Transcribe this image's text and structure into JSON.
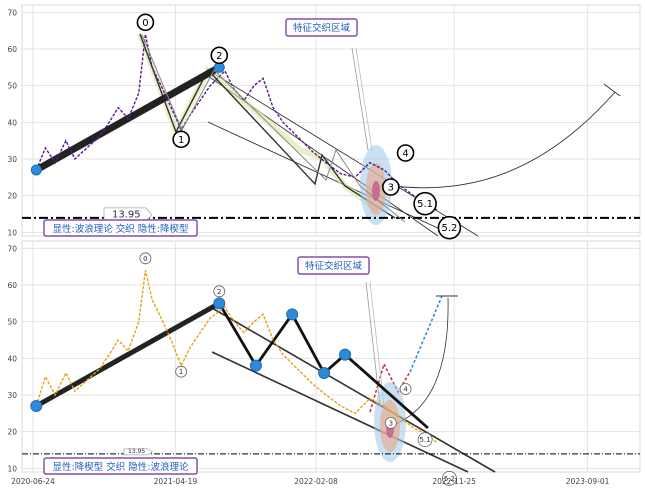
{
  "chart_data": [
    {
      "type": "line",
      "x_dates": [
        "2020-06-24",
        "2021-04-19",
        "2022-02-08",
        "2022-11-25",
        "2023-09-01"
      ],
      "y_ticks": [
        10,
        20,
        30,
        40,
        50,
        60,
        70
      ],
      "ylim": [
        9,
        72
      ],
      "xlim": [
        "2020-06-01",
        "2023-12-20"
      ],
      "grid": true,
      "price_series_color": "#5b1a8c",
      "price_series": [
        [
          "2020-07-01",
          27
        ],
        [
          "2020-07-20",
          33
        ],
        [
          "2020-08-10",
          29
        ],
        [
          "2020-09-01",
          35
        ],
        [
          "2020-09-20",
          30
        ],
        [
          "2020-10-15",
          33
        ],
        [
          "2020-11-10",
          36
        ],
        [
          "2020-12-01",
          40
        ],
        [
          "2020-12-20",
          44
        ],
        [
          "2021-01-10",
          41
        ],
        [
          "2021-02-01",
          48
        ],
        [
          "2021-02-15",
          64
        ],
        [
          "2021-03-01",
          55
        ],
        [
          "2021-03-20",
          50
        ],
        [
          "2021-04-10",
          44
        ],
        [
          "2021-05-01",
          38
        ],
        [
          "2021-05-20",
          42
        ],
        [
          "2021-06-10",
          46
        ],
        [
          "2021-07-01",
          50
        ],
        [
          "2021-08-01",
          54
        ],
        [
          "2021-08-20",
          49
        ],
        [
          "2021-09-10",
          46
        ],
        [
          "2021-10-01",
          50
        ],
        [
          "2021-10-20",
          52
        ],
        [
          "2021-11-10",
          44
        ],
        [
          "2021-12-01",
          40
        ],
        [
          "2022-01-01",
          36
        ],
        [
          "2022-02-01",
          32
        ],
        [
          "2022-03-01",
          29
        ],
        [
          "2022-04-01",
          26
        ],
        [
          "2022-05-01",
          25
        ],
        [
          "2022-06-01",
          29
        ],
        [
          "2022-07-01",
          27
        ],
        [
          "2022-08-01",
          23
        ],
        [
          "2022-09-01",
          20
        ],
        [
          "2022-10-01",
          18
        ],
        [
          "2022-10-20",
          16
        ]
      ],
      "wave_nodes": [
        {
          "label": "0",
          "date": "2021-02-15",
          "value": 64
        },
        {
          "label": "1",
          "date": "2021-05-01",
          "value": 37
        },
        {
          "label": "2",
          "date": "2021-07-20",
          "value": 55
        },
        {
          "label": "3",
          "date": "2022-07-15",
          "value": 24
        },
        {
          "label": "4",
          "date": "2022-08-15",
          "value": 30
        },
        {
          "label": "5.1",
          "date": "2022-09-25",
          "value": 20
        },
        {
          "label": "5.2",
          "date": "2022-11-15",
          "value": 14
        }
      ],
      "main_wave": [
        [
          "2020-07-01",
          27
        ],
        [
          "2021-07-20",
          55
        ]
      ],
      "markers": [
        [
          "2020-07-01",
          27
        ],
        [
          "2021-07-20",
          55
        ]
      ],
      "horizontal_level": 13.95,
      "level_label": "13.95",
      "badge_top": "特征交织区域",
      "badge_bottom": "显性:波浪理论 交织 隐性:降楔型"
    },
    {
      "type": "line",
      "x_dates": [
        "2020-06-24",
        "2021-04-19",
        "2022-02-08",
        "2022-11-25",
        "2023-09-01"
      ],
      "y_ticks": [
        10,
        20,
        30,
        40,
        50,
        60,
        70
      ],
      "ylim": [
        9,
        72
      ],
      "xlim": [
        "2020-06-01",
        "2023-12-20"
      ],
      "grid": true,
      "price_series_color": "#e8a21a",
      "price_series": [
        [
          "2020-07-01",
          27
        ],
        [
          "2020-07-20",
          35
        ],
        [
          "2020-08-10",
          30
        ],
        [
          "2020-09-01",
          36
        ],
        [
          "2020-09-20",
          31
        ],
        [
          "2020-10-15",
          34
        ],
        [
          "2020-11-10",
          37
        ],
        [
          "2020-12-01",
          41
        ],
        [
          "2020-12-20",
          45
        ],
        [
          "2021-01-10",
          42
        ],
        [
          "2021-02-01",
          50
        ],
        [
          "2021-02-15",
          64
        ],
        [
          "2021-03-01",
          56
        ],
        [
          "2021-03-20",
          51
        ],
        [
          "2021-04-10",
          45
        ],
        [
          "2021-05-01",
          38
        ],
        [
          "2021-05-20",
          43
        ],
        [
          "2021-06-10",
          47
        ],
        [
          "2021-07-01",
          51
        ],
        [
          "2021-08-01",
          54
        ],
        [
          "2021-08-20",
          50
        ],
        [
          "2021-09-10",
          47
        ],
        [
          "2021-10-01",
          50
        ],
        [
          "2021-10-20",
          52
        ],
        [
          "2021-11-10",
          45
        ],
        [
          "2021-12-01",
          41
        ],
        [
          "2022-01-01",
          37
        ],
        [
          "2022-02-01",
          33
        ],
        [
          "2022-03-01",
          30
        ],
        [
          "2022-04-01",
          27
        ],
        [
          "2022-05-01",
          25
        ],
        [
          "2022-06-01",
          29
        ],
        [
          "2022-07-01",
          27
        ],
        [
          "2022-08-01",
          24
        ],
        [
          "2022-09-01",
          21
        ],
        [
          "2022-10-01",
          19
        ],
        [
          "2022-10-20",
          17
        ]
      ],
      "wave_nodes": [
        {
          "label": "0",
          "date": "2021-02-15",
          "value": 64
        },
        {
          "label": "1",
          "date": "2021-05-01",
          "value": 38
        },
        {
          "label": "2",
          "date": "2021-07-20",
          "value": 55
        },
        {
          "label": "3",
          "date": "2022-07-15",
          "value": 24
        },
        {
          "label": "4",
          "date": "2022-08-15",
          "value": 30
        },
        {
          "label": "5.1",
          "date": "2022-09-25",
          "value": 20
        },
        {
          "label": "5.2",
          "date": "2022-11-15",
          "value": 10
        }
      ],
      "main_wave": [
        [
          "2020-07-01",
          27
        ],
        [
          "2021-07-20",
          55
        ]
      ],
      "wedge_zigzag": [
        [
          "2021-07-20",
          55
        ],
        [
          "2021-10-05",
          38
        ],
        [
          "2021-12-20",
          52
        ],
        [
          "2022-02-25",
          36
        ],
        [
          "2022-04-10",
          41
        ],
        [
          "2022-10-01",
          21
        ]
      ],
      "markers": [
        [
          "2020-07-01",
          27
        ],
        [
          "2021-07-20",
          55
        ],
        [
          "2021-10-05",
          38
        ],
        [
          "2021-12-20",
          52
        ],
        [
          "2022-02-25",
          36
        ],
        [
          "2022-04-10",
          41
        ]
      ],
      "horizontal_level": 13.95,
      "level_label": "13.95",
      "badge_top": "特征交织区域",
      "badge_bottom": "显性:降楔型 交织 隐性:波浪理论"
    }
  ]
}
